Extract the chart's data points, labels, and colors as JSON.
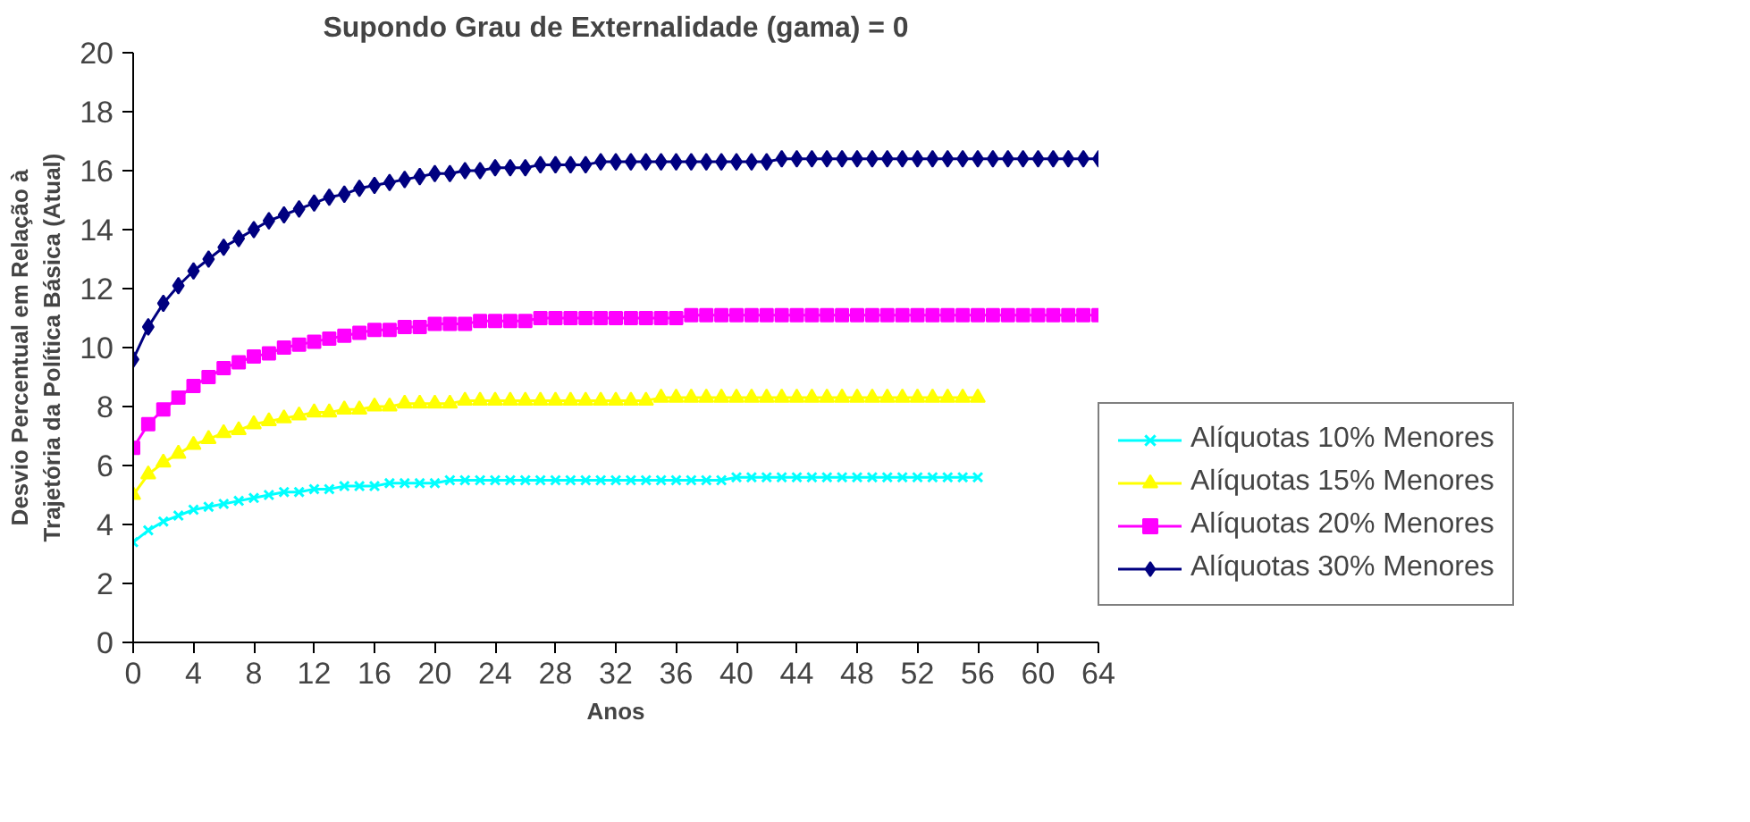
{
  "chart_data": {
    "type": "line",
    "title": "Supondo Grau de Externalidade (gama) = 0",
    "xlabel": "Anos",
    "ylabel": "Desvio Percentual em Relação à\nTrajetória da Política Básica (Atual)",
    "x": [
      0,
      1,
      2,
      3,
      4,
      5,
      6,
      7,
      8,
      9,
      10,
      11,
      12,
      13,
      14,
      15,
      16,
      17,
      18,
      19,
      20,
      21,
      22,
      23,
      24,
      25,
      26,
      27,
      28,
      29,
      30,
      31,
      32,
      33,
      34,
      35,
      36,
      37,
      38,
      39,
      40,
      41,
      42,
      43,
      44,
      45,
      46,
      47,
      48,
      49,
      50,
      51,
      52,
      53,
      54,
      55,
      56,
      57,
      58,
      59,
      60,
      61,
      62,
      63,
      64
    ],
    "series": [
      {
        "name": "Alíquotas 10% Menores",
        "color": "#00ffff",
        "marker": "cross",
        "values": [
          3.4,
          3.8,
          4.1,
          4.3,
          4.5,
          4.6,
          4.7,
          4.8,
          4.9,
          5.0,
          5.1,
          5.1,
          5.2,
          5.2,
          5.3,
          5.3,
          5.3,
          5.4,
          5.4,
          5.4,
          5.4,
          5.5,
          5.5,
          5.5,
          5.5,
          5.5,
          5.5,
          5.5,
          5.5,
          5.5,
          5.5,
          5.5,
          5.5,
          5.5,
          5.5,
          5.5,
          5.5,
          5.5,
          5.5,
          5.5,
          5.6,
          5.6,
          5.6,
          5.6,
          5.6,
          5.6,
          5.6,
          5.6,
          5.6,
          5.6,
          5.6,
          5.6,
          5.6,
          5.6,
          5.6,
          5.6,
          5.6,
          null,
          null,
          null,
          null,
          null,
          null,
          null,
          null
        ]
      },
      {
        "name": "Alíquotas 15% Menores",
        "color": "#ffff00",
        "marker": "triangle",
        "values": [
          5.0,
          5.7,
          6.1,
          6.4,
          6.7,
          6.9,
          7.1,
          7.2,
          7.4,
          7.5,
          7.6,
          7.7,
          7.8,
          7.8,
          7.9,
          7.9,
          8.0,
          8.0,
          8.1,
          8.1,
          8.1,
          8.1,
          8.2,
          8.2,
          8.2,
          8.2,
          8.2,
          8.2,
          8.2,
          8.2,
          8.2,
          8.2,
          8.2,
          8.2,
          8.2,
          8.3,
          8.3,
          8.3,
          8.3,
          8.3,
          8.3,
          8.3,
          8.3,
          8.3,
          8.3,
          8.3,
          8.3,
          8.3,
          8.3,
          8.3,
          8.3,
          8.3,
          8.3,
          8.3,
          8.3,
          8.3,
          8.3,
          null,
          null,
          null,
          null,
          null,
          null,
          null,
          null
        ]
      },
      {
        "name": "Alíquotas 20% Menores",
        "color": "#ff00ff",
        "marker": "square",
        "values": [
          6.6,
          7.4,
          7.9,
          8.3,
          8.7,
          9.0,
          9.3,
          9.5,
          9.7,
          9.8,
          10.0,
          10.1,
          10.2,
          10.3,
          10.4,
          10.5,
          10.6,
          10.6,
          10.7,
          10.7,
          10.8,
          10.8,
          10.8,
          10.9,
          10.9,
          10.9,
          10.9,
          11.0,
          11.0,
          11.0,
          11.0,
          11.0,
          11.0,
          11.0,
          11.0,
          11.0,
          11.0,
          11.1,
          11.1,
          11.1,
          11.1,
          11.1,
          11.1,
          11.1,
          11.1,
          11.1,
          11.1,
          11.1,
          11.1,
          11.1,
          11.1,
          11.1,
          11.1,
          11.1,
          11.1,
          11.1,
          11.1,
          11.1,
          11.1,
          11.1,
          11.1,
          11.1,
          11.1,
          11.1,
          11.1
        ]
      },
      {
        "name": "Alíquotas 30% Menores",
        "color": "#000080",
        "marker": "diamond",
        "values": [
          9.6,
          10.7,
          11.5,
          12.1,
          12.6,
          13.0,
          13.4,
          13.7,
          14.0,
          14.3,
          14.5,
          14.7,
          14.9,
          15.1,
          15.2,
          15.4,
          15.5,
          15.6,
          15.7,
          15.8,
          15.9,
          15.9,
          16.0,
          16.0,
          16.1,
          16.1,
          16.1,
          16.2,
          16.2,
          16.2,
          16.2,
          16.3,
          16.3,
          16.3,
          16.3,
          16.3,
          16.3,
          16.3,
          16.3,
          16.3,
          16.3,
          16.3,
          16.3,
          16.4,
          16.4,
          16.4,
          16.4,
          16.4,
          16.4,
          16.4,
          16.4,
          16.4,
          16.4,
          16.4,
          16.4,
          16.4,
          16.4,
          16.4,
          16.4,
          16.4,
          16.4,
          16.4,
          16.4,
          16.4,
          16.4
        ]
      }
    ],
    "xlim": [
      0,
      64
    ],
    "xticks": [
      0,
      4,
      8,
      12,
      16,
      20,
      24,
      28,
      32,
      36,
      40,
      44,
      48,
      52,
      56,
      60,
      64
    ],
    "ylim": [
      0,
      20
    ],
    "yticks": [
      0,
      2,
      4,
      6,
      8,
      10,
      12,
      14,
      16,
      18,
      20
    ],
    "grid": false,
    "legend": "right",
    "line_style": "solid"
  }
}
